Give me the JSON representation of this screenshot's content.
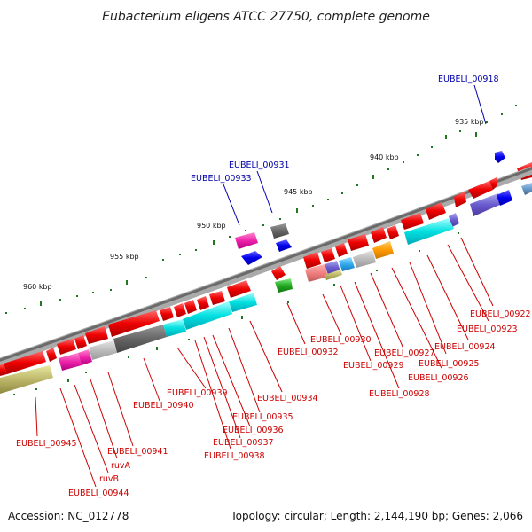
{
  "title": "Eubacterium eligens ATCC 27750, complete genome",
  "footer": {
    "accession": "Accession: NC_012778",
    "summary": "Topology: circular; Length: 2,144,190 bp; Genes: 2,066"
  },
  "ticks": [
    "935 kbp",
    "940 kbp",
    "945 kbp",
    "950 kbp",
    "955 kbp",
    "960 kbp"
  ],
  "gene_labels_forward": [
    "EUBELI_00918",
    "EUBELI_00931",
    "EUBELI_00933"
  ],
  "gene_labels_reverse": [
    "EUBELI_00922",
    "EUBELI_00923",
    "EUBELI_00924",
    "EUBELI_00925",
    "EUBELI_00926",
    "EUBELI_00927",
    "EUBELI_00928",
    "EUBELI_00929",
    "EUBELI_00930",
    "EUBELI_00932",
    "EUBELI_00934",
    "EUBELI_00935",
    "EUBELI_00936",
    "EUBELI_00937",
    "EUBELI_00938",
    "EUBELI_00939",
    "EUBELI_00940",
    "EUBELI_00941",
    "ruvA",
    "ruvB",
    "EUBELI_00944",
    "EUBELI_00945"
  ],
  "colors": {
    "cds": "#ee0000",
    "backbone": "#888888",
    "label_forward": "#0000aa",
    "label_reverse": "#cc0000",
    "gc_dot": "#227722"
  }
}
